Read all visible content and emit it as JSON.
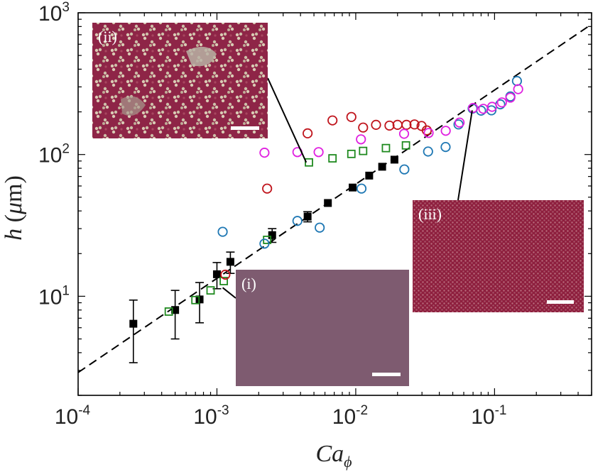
{
  "chart_data": {
    "type": "scatter",
    "xscale": "log",
    "yscale": "log",
    "xlim": [
      0.0001,
      0.5
    ],
    "ylim": [
      2.0,
      1000
    ],
    "grid": false,
    "xlabel": "Ca_φ",
    "ylabel": "h (μm)",
    "xticks": [
      {
        "value": 0.0001,
        "base": "10",
        "exp": "-4"
      },
      {
        "value": 0.001,
        "base": "10",
        "exp": "-3"
      },
      {
        "value": 0.01,
        "base": "10",
        "exp": "-2"
      },
      {
        "value": 0.1,
        "base": "10",
        "exp": "-1"
      }
    ],
    "yticks": [
      {
        "value": 10,
        "base": "10",
        "exp": "1"
      },
      {
        "value": 100,
        "base": "10",
        "exp": "2"
      },
      {
        "value": 1000,
        "base": "10",
        "exp": "3"
      }
    ],
    "fit_line": {
      "style": "dashed",
      "color": "#000000",
      "x": [
        0.0001,
        0.5
      ],
      "y": [
        2.9,
        830
      ]
    },
    "series": [
      {
        "marker": "filled-square",
        "color": "#000000",
        "errorbars": true,
        "points": [
          {
            "x": 0.00025,
            "y": 6.4,
            "ylo": 3.4,
            "yhi": 9.4
          },
          {
            "x": 0.0005,
            "y": 8.0,
            "ylo": 5.0,
            "yhi": 11.0
          },
          {
            "x": 0.00075,
            "y": 9.5,
            "ylo": 6.5,
            "yhi": 12.5
          },
          {
            "x": 0.001,
            "y": 14.3,
            "ylo": 11.3,
            "yhi": 17.3
          },
          {
            "x": 0.00125,
            "y": 17.5,
            "ylo": 14.5,
            "yhi": 20.5
          },
          {
            "x": 0.0025,
            "y": 27.0,
            "ylo": 24.0,
            "yhi": 30.0
          },
          {
            "x": 0.0045,
            "y": 36.5,
            "ylo": 33.5,
            "yhi": 39.5
          },
          {
            "x": 0.0063,
            "y": 45.5
          },
          {
            "x": 0.0095,
            "y": 58.5
          },
          {
            "x": 0.0125,
            "y": 71.0
          },
          {
            "x": 0.0155,
            "y": 82.0
          },
          {
            "x": 0.019,
            "y": 92.0
          }
        ]
      },
      {
        "marker": "open-square",
        "color": "#1f8a1f",
        "points": [
          {
            "x": 0.00045,
            "y": 7.8
          },
          {
            "x": 0.0007,
            "y": 9.4
          },
          {
            "x": 0.0009,
            "y": 11.0
          },
          {
            "x": 0.00112,
            "y": 12.8
          },
          {
            "x": 0.0023,
            "y": 25.0
          },
          {
            "x": 0.0046,
            "y": 88.0
          },
          {
            "x": 0.0068,
            "y": 94.0
          },
          {
            "x": 0.0093,
            "y": 101.0
          },
          {
            "x": 0.0113,
            "y": 106.0
          },
          {
            "x": 0.0165,
            "y": 111.0
          },
          {
            "x": 0.023,
            "y": 116.0
          }
        ]
      },
      {
        "marker": "open-circle",
        "color": "#1f78b4",
        "points": [
          {
            "x": 0.0011,
            "y": 28.5
          },
          {
            "x": 0.0022,
            "y": 23.5
          },
          {
            "x": 0.0038,
            "y": 34.0
          },
          {
            "x": 0.0055,
            "y": 30.5
          },
          {
            "x": 0.011,
            "y": 57.5
          },
          {
            "x": 0.0224,
            "y": 78.5
          },
          {
            "x": 0.0332,
            "y": 105.0
          },
          {
            "x": 0.0444,
            "y": 113.0
          },
          {
            "x": 0.055,
            "y": 163.0
          },
          {
            "x": 0.0695,
            "y": 211.0
          },
          {
            "x": 0.08,
            "y": 204.0
          },
          {
            "x": 0.095,
            "y": 205.0
          },
          {
            "x": 0.11,
            "y": 226.0
          },
          {
            "x": 0.13,
            "y": 257.0
          },
          {
            "x": 0.145,
            "y": 330.0
          }
        ]
      },
      {
        "marker": "open-circle",
        "color": "#c0151d",
        "points": [
          {
            "x": 0.00115,
            "y": 14.2
          },
          {
            "x": 0.0023,
            "y": 57.5
          },
          {
            "x": 0.0045,
            "y": 141.0
          },
          {
            "x": 0.0068,
            "y": 174.0
          },
          {
            "x": 0.0093,
            "y": 184.0
          },
          {
            "x": 0.0113,
            "y": 155.0
          },
          {
            "x": 0.014,
            "y": 162.0
          },
          {
            "x": 0.0175,
            "y": 160.0
          },
          {
            "x": 0.02,
            "y": 162.0
          },
          {
            "x": 0.0232,
            "y": 162.0
          },
          {
            "x": 0.0265,
            "y": 163.0
          },
          {
            "x": 0.0298,
            "y": 159.0
          },
          {
            "x": 0.0325,
            "y": 148.0
          }
        ]
      },
      {
        "marker": "open-circle",
        "color": "#e020e0",
        "points": [
          {
            "x": 0.0022,
            "y": 103.0
          },
          {
            "x": 0.0038,
            "y": 104.0
          },
          {
            "x": 0.0054,
            "y": 104.0
          },
          {
            "x": 0.0109,
            "y": 128.0
          },
          {
            "x": 0.0223,
            "y": 140.0
          },
          {
            "x": 0.0335,
            "y": 142.0
          },
          {
            "x": 0.0445,
            "y": 147.0
          },
          {
            "x": 0.056,
            "y": 168.0
          },
          {
            "x": 0.07,
            "y": 213.0
          },
          {
            "x": 0.083,
            "y": 210.0
          },
          {
            "x": 0.096,
            "y": 217.0
          },
          {
            "x": 0.113,
            "y": 233.0
          },
          {
            "x": 0.13,
            "y": 252.0
          },
          {
            "x": 0.148,
            "y": 289.0
          }
        ]
      }
    ],
    "insets": [
      {
        "label": "(i)",
        "theme": "smooth-film",
        "pointer": {
          "x": 0.0011,
          "y": 11.5
        }
      },
      {
        "label": "(ii)",
        "theme": "particle-clusters",
        "pointer": {
          "x": 0.0044,
          "y": 88.0
        }
      },
      {
        "label": "(iii)",
        "theme": "dense-monolayer",
        "pointer": {
          "x": 0.069,
          "y": 205.0
        }
      }
    ]
  }
}
